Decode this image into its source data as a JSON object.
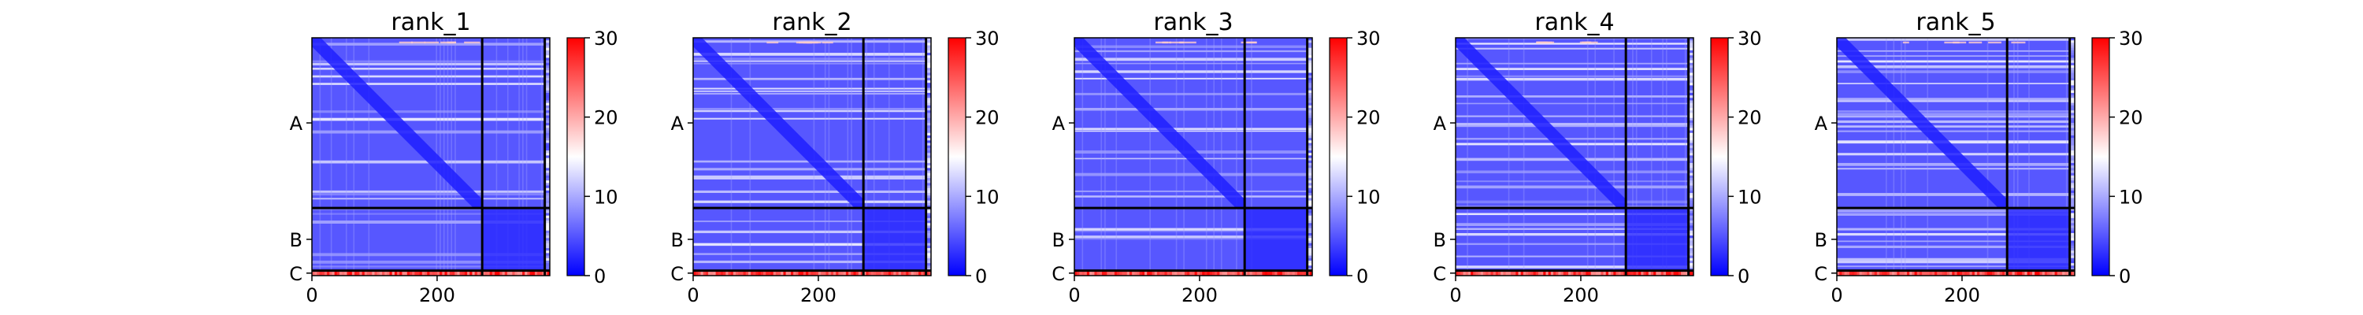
{
  "chart_data": [
    {
      "type": "heatmap",
      "title": "rank_1",
      "x_ticks": [
        "0",
        "200"
      ],
      "x_tick_values": [
        0,
        200
      ],
      "xlim": [
        0,
        380
      ],
      "chain_labels": [
        "A",
        "B",
        "C"
      ],
      "chain_bounds": [
        0,
        272,
        372,
        380
      ],
      "colorbar": {
        "ticks": [
          "0",
          "10",
          "20",
          "30"
        ],
        "range": [
          0,
          30
        ],
        "colormap": "bwr"
      }
    },
    {
      "type": "heatmap",
      "title": "rank_2",
      "x_ticks": [
        "0",
        "200"
      ],
      "x_tick_values": [
        0,
        200
      ],
      "xlim": [
        0,
        380
      ],
      "chain_labels": [
        "A",
        "B",
        "C"
      ],
      "chain_bounds": [
        0,
        272,
        372,
        380
      ],
      "colorbar": {
        "ticks": [
          "0",
          "10",
          "20",
          "30"
        ],
        "range": [
          0,
          30
        ],
        "colormap": "bwr"
      }
    },
    {
      "type": "heatmap",
      "title": "rank_3",
      "x_ticks": [
        "0",
        "200"
      ],
      "x_tick_values": [
        0,
        200
      ],
      "xlim": [
        0,
        380
      ],
      "chain_labels": [
        "A",
        "B",
        "C"
      ],
      "chain_bounds": [
        0,
        272,
        372,
        380
      ],
      "colorbar": {
        "ticks": [
          "0",
          "10",
          "20",
          "30"
        ],
        "range": [
          0,
          30
        ],
        "colormap": "bwr"
      }
    },
    {
      "type": "heatmap",
      "title": "rank_4",
      "x_ticks": [
        "0",
        "200"
      ],
      "x_tick_values": [
        0,
        200
      ],
      "xlim": [
        0,
        380
      ],
      "chain_labels": [
        "A",
        "B",
        "C"
      ],
      "chain_bounds": [
        0,
        272,
        372,
        380
      ],
      "colorbar": {
        "ticks": [
          "0",
          "10",
          "20",
          "30"
        ],
        "range": [
          0,
          30
        ],
        "colormap": "bwr"
      }
    },
    {
      "type": "heatmap",
      "title": "rank_5",
      "x_ticks": [
        "0",
        "200"
      ],
      "x_tick_values": [
        0,
        200
      ],
      "xlim": [
        0,
        380
      ],
      "chain_labels": [
        "A",
        "B",
        "C"
      ],
      "chain_bounds": [
        0,
        272,
        372,
        380
      ],
      "colorbar": {
        "ticks": [
          "0",
          "10",
          "20",
          "30"
        ],
        "range": [
          0,
          30
        ],
        "colormap": "bwr"
      }
    }
  ],
  "colors": {
    "low": "#0000ff",
    "mid": "#ffffff",
    "high": "#ff0000",
    "divider": "#000000"
  }
}
